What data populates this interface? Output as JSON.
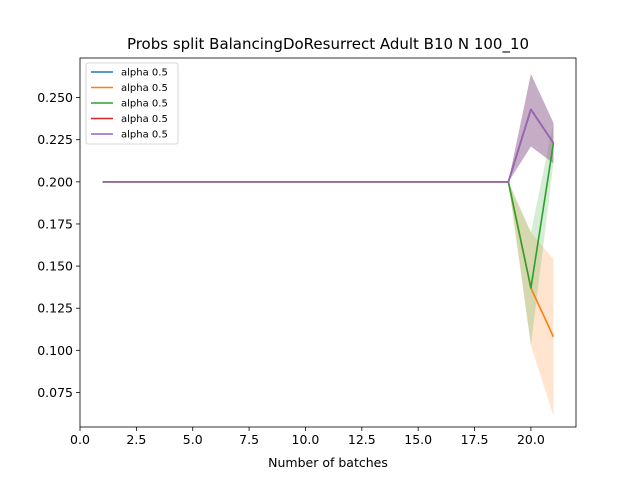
{
  "chart_data": {
    "type": "line",
    "title": "Probs split BalancingDoResurrect Adult B10 N 100_10",
    "xlabel": "Number of batches",
    "ylabel": "",
    "xlim": [
      0.0,
      22.0
    ],
    "ylim": [
      0.0545,
      0.2735
    ],
    "xticks": [
      0.0,
      2.5,
      5.0,
      7.5,
      10.0,
      12.5,
      15.0,
      17.5,
      20.0
    ],
    "xtick_labels": [
      "0.0",
      "2.5",
      "5.0",
      "7.5",
      "10.0",
      "12.5",
      "15.0",
      "17.5",
      "20.0"
    ],
    "yticks": [
      0.075,
      0.1,
      0.125,
      0.15,
      0.175,
      0.2,
      0.225,
      0.25
    ],
    "ytick_labels": [
      "0.075",
      "0.100",
      "0.125",
      "0.150",
      "0.175",
      "0.200",
      "0.225",
      "0.250"
    ],
    "grid": false,
    "legend_position": "top-left",
    "x": [
      1,
      2,
      3,
      4,
      5,
      6,
      7,
      8,
      9,
      10,
      11,
      12,
      13,
      14,
      15,
      16,
      17,
      18,
      19,
      20,
      21
    ],
    "series": [
      {
        "name": "alpha 0.5",
        "color": "#1f77b4",
        "values": [
          0.2,
          0.2,
          0.2,
          0.2,
          0.2,
          0.2,
          0.2,
          0.2,
          0.2,
          0.2,
          0.2,
          0.2,
          0.2,
          0.2,
          0.2,
          0.2,
          0.2,
          0.2,
          0.2,
          0.243,
          0.223
        ],
        "lower": [
          0.2,
          0.2,
          0.2,
          0.2,
          0.2,
          0.2,
          0.2,
          0.2,
          0.2,
          0.2,
          0.2,
          0.2,
          0.2,
          0.2,
          0.2,
          0.2,
          0.2,
          0.2,
          0.2,
          0.221,
          0.211
        ],
        "upper": [
          0.2,
          0.2,
          0.2,
          0.2,
          0.2,
          0.2,
          0.2,
          0.2,
          0.2,
          0.2,
          0.2,
          0.2,
          0.2,
          0.2,
          0.2,
          0.2,
          0.2,
          0.2,
          0.2,
          0.264,
          0.235
        ]
      },
      {
        "name": "alpha 0.5",
        "color": "#ff7f0e",
        "values": [
          0.2,
          0.2,
          0.2,
          0.2,
          0.2,
          0.2,
          0.2,
          0.2,
          0.2,
          0.2,
          0.2,
          0.2,
          0.2,
          0.2,
          0.2,
          0.2,
          0.2,
          0.2,
          0.2,
          0.137,
          0.108
        ],
        "lower": [
          0.2,
          0.2,
          0.2,
          0.2,
          0.2,
          0.2,
          0.2,
          0.2,
          0.2,
          0.2,
          0.2,
          0.2,
          0.2,
          0.2,
          0.2,
          0.2,
          0.2,
          0.2,
          0.2,
          0.103,
          0.061
        ],
        "upper": [
          0.2,
          0.2,
          0.2,
          0.2,
          0.2,
          0.2,
          0.2,
          0.2,
          0.2,
          0.2,
          0.2,
          0.2,
          0.2,
          0.2,
          0.2,
          0.2,
          0.2,
          0.2,
          0.2,
          0.17,
          0.154
        ]
      },
      {
        "name": "alpha 0.5",
        "color": "#2ca02c",
        "values": [
          0.2,
          0.2,
          0.2,
          0.2,
          0.2,
          0.2,
          0.2,
          0.2,
          0.2,
          0.2,
          0.2,
          0.2,
          0.2,
          0.2,
          0.2,
          0.2,
          0.2,
          0.2,
          0.2,
          0.137,
          0.223
        ],
        "lower": [
          0.2,
          0.2,
          0.2,
          0.2,
          0.2,
          0.2,
          0.2,
          0.2,
          0.2,
          0.2,
          0.2,
          0.2,
          0.2,
          0.2,
          0.2,
          0.2,
          0.2,
          0.2,
          0.2,
          0.103,
          0.211
        ],
        "upper": [
          0.2,
          0.2,
          0.2,
          0.2,
          0.2,
          0.2,
          0.2,
          0.2,
          0.2,
          0.2,
          0.2,
          0.2,
          0.2,
          0.2,
          0.2,
          0.2,
          0.2,
          0.2,
          0.2,
          0.17,
          0.235
        ]
      },
      {
        "name": "alpha 0.5",
        "color": "#d62728",
        "values": [
          0.2,
          0.2,
          0.2,
          0.2,
          0.2,
          0.2,
          0.2,
          0.2,
          0.2,
          0.2,
          0.2,
          0.2,
          0.2,
          0.2,
          0.2,
          0.2,
          0.2,
          0.2,
          0.2,
          0.243,
          0.223
        ],
        "lower": [
          0.2,
          0.2,
          0.2,
          0.2,
          0.2,
          0.2,
          0.2,
          0.2,
          0.2,
          0.2,
          0.2,
          0.2,
          0.2,
          0.2,
          0.2,
          0.2,
          0.2,
          0.2,
          0.2,
          0.221,
          0.211
        ],
        "upper": [
          0.2,
          0.2,
          0.2,
          0.2,
          0.2,
          0.2,
          0.2,
          0.2,
          0.2,
          0.2,
          0.2,
          0.2,
          0.2,
          0.2,
          0.2,
          0.2,
          0.2,
          0.2,
          0.2,
          0.264,
          0.235
        ]
      },
      {
        "name": "alpha 0.5",
        "color": "#9467bd",
        "values": [
          0.2,
          0.2,
          0.2,
          0.2,
          0.2,
          0.2,
          0.2,
          0.2,
          0.2,
          0.2,
          0.2,
          0.2,
          0.2,
          0.2,
          0.2,
          0.2,
          0.2,
          0.2,
          0.2,
          0.243,
          0.223
        ],
        "lower": [
          0.2,
          0.2,
          0.2,
          0.2,
          0.2,
          0.2,
          0.2,
          0.2,
          0.2,
          0.2,
          0.2,
          0.2,
          0.2,
          0.2,
          0.2,
          0.2,
          0.2,
          0.2,
          0.2,
          0.221,
          0.211
        ],
        "upper": [
          0.2,
          0.2,
          0.2,
          0.2,
          0.2,
          0.2,
          0.2,
          0.2,
          0.2,
          0.2,
          0.2,
          0.2,
          0.2,
          0.2,
          0.2,
          0.2,
          0.2,
          0.2,
          0.2,
          0.264,
          0.235
        ]
      }
    ]
  }
}
